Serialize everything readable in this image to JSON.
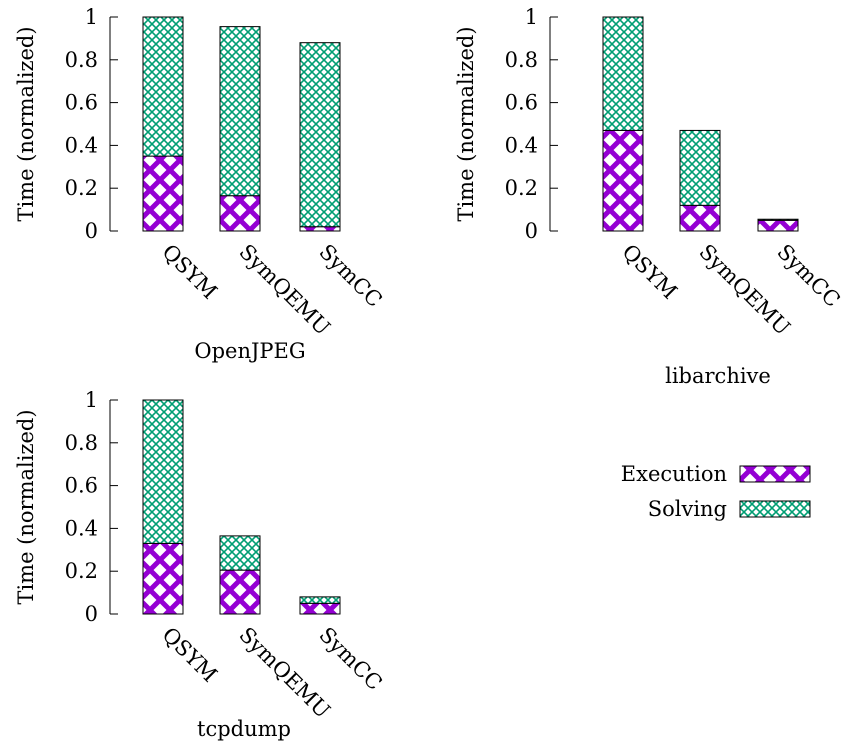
{
  "chart_data": [
    {
      "type": "bar",
      "stacked": true,
      "title": "OpenJPEG",
      "ylabel": "Time (normalized)",
      "ylim": [
        0,
        1
      ],
      "yticks": [
        "0",
        "0.2",
        "0.4",
        "0.6",
        "0.8",
        "1"
      ],
      "categories": [
        "QSYM",
        "SymQEMU",
        "SymCC"
      ],
      "series": [
        {
          "name": "Execution",
          "values": [
            0.35,
            0.165,
            0.02
          ]
        },
        {
          "name": "Solving",
          "values": [
            0.65,
            0.79,
            0.86
          ]
        }
      ]
    },
    {
      "type": "bar",
      "stacked": true,
      "title": "libarchive",
      "ylabel": "Time (normalized)",
      "ylim": [
        0,
        1
      ],
      "yticks": [
        "0",
        "0.2",
        "0.4",
        "0.6",
        "0.8",
        "1"
      ],
      "categories": [
        "QSYM",
        "SymQEMU",
        "SymCC"
      ],
      "series": [
        {
          "name": "Execution",
          "values": [
            0.47,
            0.12,
            0.05
          ]
        },
        {
          "name": "Solving",
          "values": [
            0.53,
            0.35,
            0.005
          ]
        }
      ]
    },
    {
      "type": "bar",
      "stacked": true,
      "title": "tcpdump",
      "ylabel": "Time (normalized)",
      "ylim": [
        0,
        1
      ],
      "yticks": [
        "0",
        "0.2",
        "0.4",
        "0.6",
        "0.8",
        "1"
      ],
      "categories": [
        "QSYM",
        "SymQEMU",
        "SymCC"
      ],
      "series": [
        {
          "name": "Execution",
          "values": [
            0.33,
            0.205,
            0.05
          ]
        },
        {
          "name": "Solving",
          "values": [
            0.67,
            0.16,
            0.03
          ]
        }
      ]
    }
  ],
  "legend": {
    "placement": "right",
    "items": [
      {
        "label": "Execution",
        "color": "#9400d3"
      },
      {
        "label": "Solving",
        "color": "#009e73"
      }
    ]
  }
}
